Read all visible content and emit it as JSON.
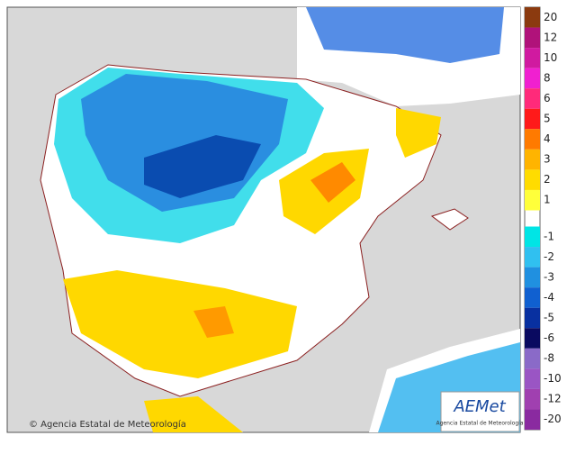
{
  "legend": {
    "ticks": [
      20,
      12,
      10,
      8,
      6,
      5,
      4,
      3,
      2,
      1,
      -1,
      -2,
      -3,
      -4,
      -5,
      -6,
      -8,
      -10,
      -12,
      -20
    ],
    "colors": [
      "#8b3a0f",
      "#b0127a",
      "#d01aa0",
      "#f020d0",
      "#ff2a7a",
      "#ff1a1a",
      "#ff7a00",
      "#ffb400",
      "#ffdc00",
      "#ffff3a",
      "#00e5e5",
      "#30c0f0",
      "#2090e0",
      "#1060d0",
      "#0830a0",
      "#0a0a60",
      "#8a6ac8",
      "#9a55c4",
      "#a040b0",
      "#8a2aa0"
    ]
  },
  "credit": "© Agencia Estatal de Meteorología",
  "logo": {
    "name": "AEMet",
    "subtitle": "Agencia Estatal de Meteorología"
  }
}
